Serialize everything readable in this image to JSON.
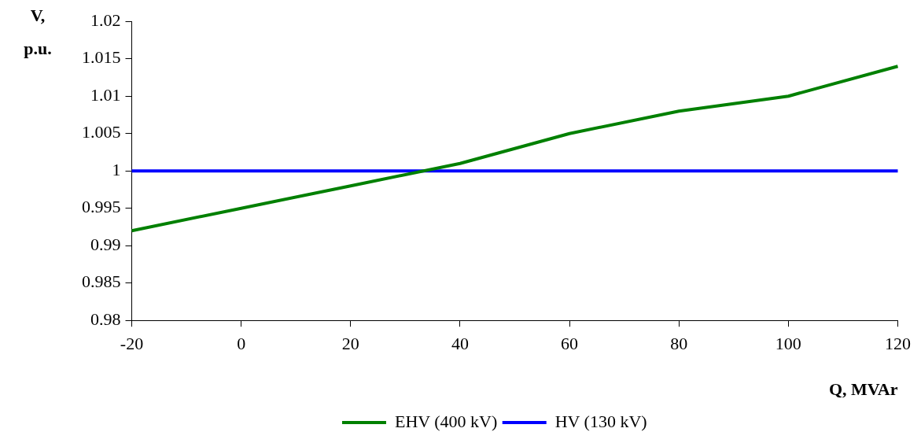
{
  "chart_data": {
    "type": "line",
    "xlabel": "Q, MVAr",
    "ylabel": "V, p.u.",
    "x": [
      -20,
      0,
      20,
      40,
      60,
      80,
      100,
      120
    ],
    "series": [
      {
        "name": "EHV (400 kV)",
        "color": "#008000",
        "values": [
          0.992,
          0.995,
          0.998,
          1.001,
          1.005,
          1.008,
          1.01,
          1.014
        ]
      },
      {
        "name": "HV (130 kV)",
        "color": "#0000ff",
        "values": [
          1,
          1,
          1,
          1,
          1,
          1,
          1,
          1
        ]
      }
    ],
    "xlim": [
      -20,
      120
    ],
    "xticks": [
      -20,
      0,
      20,
      40,
      60,
      80,
      100,
      120
    ],
    "ylim": [
      0.98,
      1.02
    ],
    "yticks": [
      0.98,
      0.985,
      0.99,
      0.995,
      1,
      1.005,
      1.01,
      1.015,
      1.02
    ],
    "grid": false,
    "legend": "bottom",
    "marker": "none",
    "line_style": "solid"
  }
}
